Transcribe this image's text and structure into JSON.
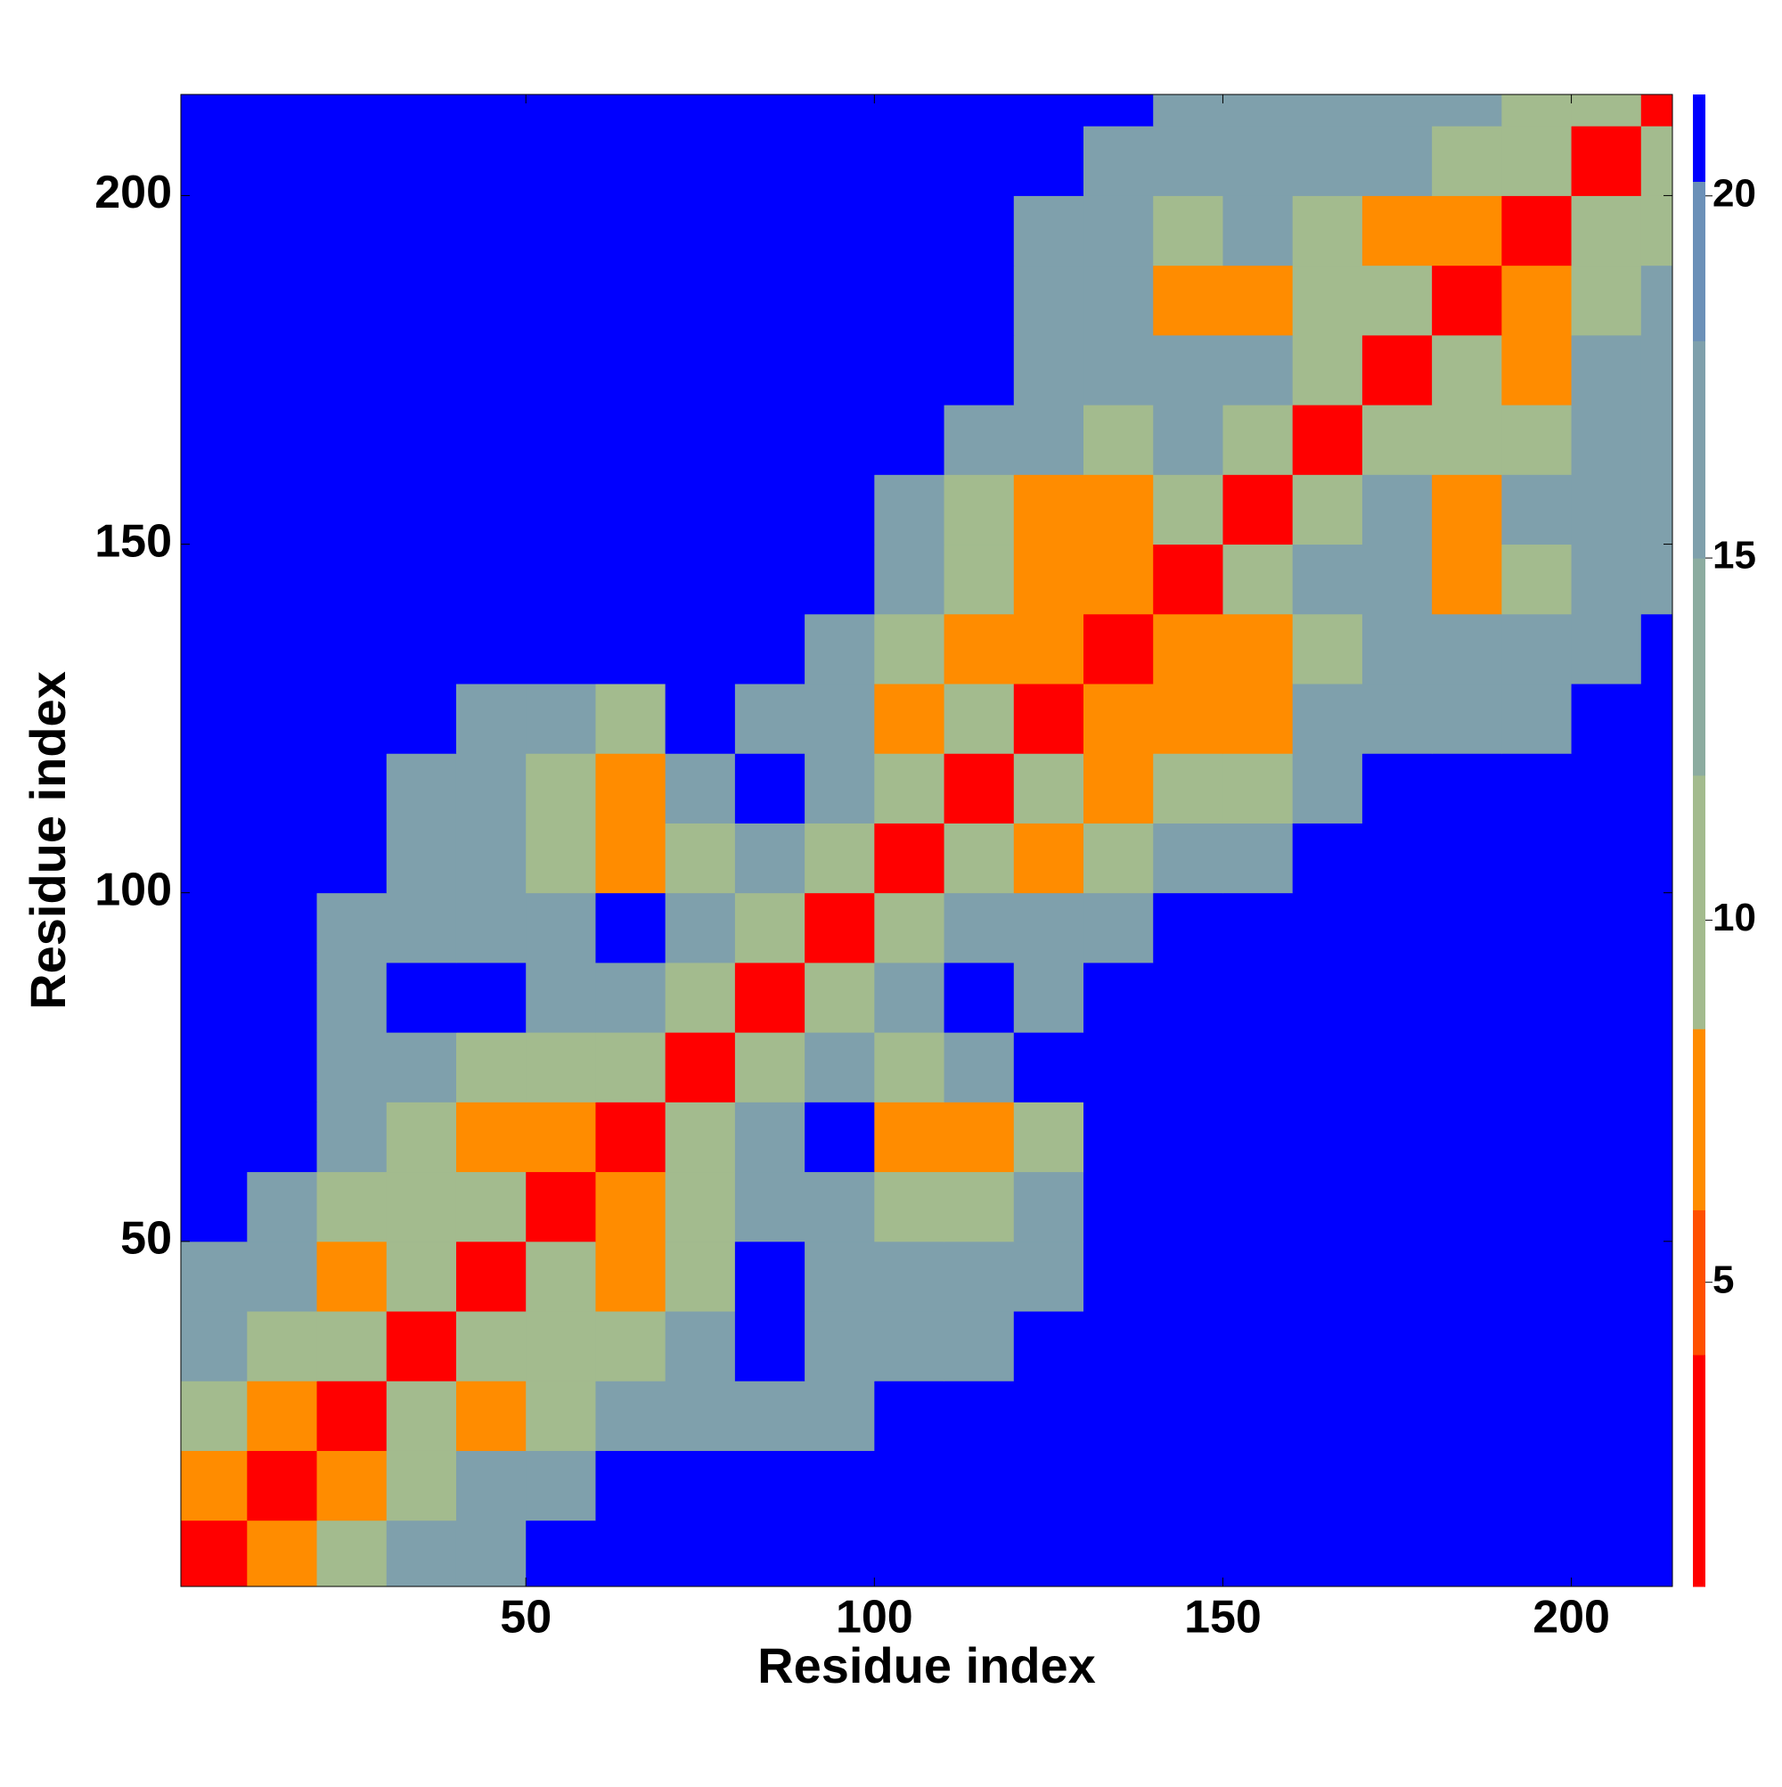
{
  "chart_data": {
    "type": "heatmap",
    "xlabel": "Residue index",
    "ylabel": "Residue index",
    "x": [
      5,
      15,
      25,
      35,
      45,
      55,
      65,
      75,
      85,
      95,
      105,
      115,
      125,
      135,
      145,
      155,
      165,
      175,
      185,
      195,
      205,
      215
    ],
    "y": [
      5,
      15,
      25,
      35,
      45,
      55,
      65,
      75,
      85,
      95,
      105,
      115,
      125,
      135,
      145,
      155,
      165,
      175,
      185,
      195,
      205,
      215
    ],
    "values": [
      [
        3,
        7,
        11,
        16,
        16,
        21,
        21,
        21,
        21,
        21,
        21,
        21,
        21,
        21,
        21,
        21,
        21,
        21,
        21,
        21,
        21,
        21
      ],
      [
        7,
        3,
        7,
        11,
        16,
        16,
        21,
        21,
        21,
        21,
        21,
        21,
        21,
        21,
        21,
        21,
        21,
        21,
        21,
        21,
        21,
        21
      ],
      [
        11,
        7,
        3,
        11,
        7,
        11,
        16,
        16,
        16,
        16,
        21,
        21,
        21,
        21,
        21,
        21,
        21,
        21,
        21,
        21,
        21,
        21
      ],
      [
        16,
        11,
        11,
        3,
        11,
        11,
        11,
        16,
        21,
        16,
        16,
        16,
        21,
        21,
        21,
        21,
        21,
        21,
        21,
        21,
        21,
        21
      ],
      [
        16,
        16,
        7,
        11,
        3,
        11,
        7,
        11,
        21,
        16,
        16,
        16,
        16,
        21,
        21,
        21,
        21,
        21,
        21,
        21,
        21,
        21
      ],
      [
        21,
        16,
        11,
        11,
        11,
        3,
        7,
        11,
        16,
        16,
        11,
        11,
        16,
        21,
        21,
        21,
        21,
        21,
        21,
        21,
        21,
        21
      ],
      [
        21,
        21,
        16,
        11,
        7,
        7,
        3,
        11,
        16,
        21,
        7,
        7,
        11,
        21,
        21,
        21,
        21,
        21,
        21,
        21,
        21,
        21
      ],
      [
        21,
        21,
        16,
        16,
        11,
        11,
        11,
        3,
        11,
        16,
        11,
        16,
        21,
        21,
        21,
        21,
        21,
        21,
        21,
        21,
        21,
        21
      ],
      [
        21,
        21,
        16,
        21,
        21,
        16,
        16,
        11,
        3,
        11,
        16,
        21,
        16,
        21,
        21,
        21,
        21,
        21,
        21,
        21,
        21,
        21
      ],
      [
        21,
        21,
        16,
        16,
        16,
        16,
        21,
        16,
        11,
        3,
        11,
        16,
        16,
        16,
        21,
        21,
        21,
        21,
        21,
        21,
        21,
        21
      ],
      [
        21,
        21,
        21,
        16,
        16,
        11,
        7,
        11,
        16,
        11,
        3,
        11,
        7,
        11,
        16,
        16,
        21,
        21,
        21,
        21,
        21,
        21
      ],
      [
        21,
        21,
        21,
        16,
        16,
        11,
        7,
        16,
        21,
        16,
        11,
        3,
        11,
        7,
        11,
        11,
        16,
        21,
        21,
        21,
        21,
        21
      ],
      [
        21,
        21,
        21,
        21,
        16,
        16,
        11,
        21,
        16,
        16,
        7,
        11,
        3,
        7,
        7,
        7,
        16,
        16,
        16,
        16,
        21,
        21
      ],
      [
        21,
        21,
        21,
        21,
        21,
        21,
        21,
        21,
        21,
        16,
        11,
        7,
        7,
        3,
        7,
        7,
        11,
        16,
        16,
        16,
        16,
        21
      ],
      [
        21,
        21,
        21,
        21,
        21,
        21,
        21,
        21,
        21,
        21,
        16,
        11,
        7,
        7,
        3,
        11,
        16,
        16,
        7,
        11,
        16,
        16
      ],
      [
        21,
        21,
        21,
        21,
        21,
        21,
        21,
        21,
        21,
        21,
        16,
        11,
        7,
        7,
        11,
        3,
        11,
        16,
        7,
        16,
        16,
        16
      ],
      [
        21,
        21,
        21,
        21,
        21,
        21,
        21,
        21,
        21,
        21,
        21,
        16,
        16,
        11,
        16,
        11,
        3,
        11,
        11,
        11,
        16,
        16
      ],
      [
        21,
        21,
        21,
        21,
        21,
        21,
        21,
        21,
        21,
        21,
        21,
        21,
        16,
        16,
        16,
        16,
        11,
        3,
        11,
        7,
        16,
        16
      ],
      [
        21,
        21,
        21,
        21,
        21,
        21,
        21,
        21,
        21,
        21,
        21,
        21,
        16,
        16,
        7,
        7,
        11,
        11,
        3,
        7,
        11,
        16
      ],
      [
        21,
        21,
        21,
        21,
        21,
        21,
        21,
        21,
        21,
        21,
        21,
        21,
        16,
        16,
        11,
        16,
        11,
        7,
        7,
        3,
        11,
        11
      ],
      [
        21,
        21,
        21,
        21,
        21,
        21,
        21,
        21,
        21,
        21,
        21,
        21,
        21,
        16,
        16,
        16,
        16,
        16,
        11,
        11,
        3,
        11
      ],
      [
        21,
        21,
        21,
        21,
        21,
        21,
        21,
        21,
        21,
        21,
        21,
        21,
        21,
        21,
        16,
        16,
        16,
        16,
        16,
        11,
        11,
        3
      ]
    ],
    "xlim": [
      0.5,
      214.5
    ],
    "ylim": [
      0.5,
      214.5
    ],
    "xticks": [
      50,
      100,
      150,
      200
    ],
    "yticks": [
      50,
      100,
      150,
      200
    ],
    "clim": [
      0.8,
      21.4
    ],
    "cticks": [
      5,
      10,
      15,
      20
    ],
    "colorscale": [
      [
        0.8,
        "#ff0000"
      ],
      [
        4,
        "#ff5000"
      ],
      [
        6,
        "#ff8c00"
      ],
      [
        8.5,
        "#a3bb8e"
      ],
      [
        12,
        "#8caca0"
      ],
      [
        15,
        "#7fa0ac"
      ],
      [
        18,
        "#6b90b8"
      ],
      [
        20.2,
        "#0000ff"
      ]
    ]
  }
}
